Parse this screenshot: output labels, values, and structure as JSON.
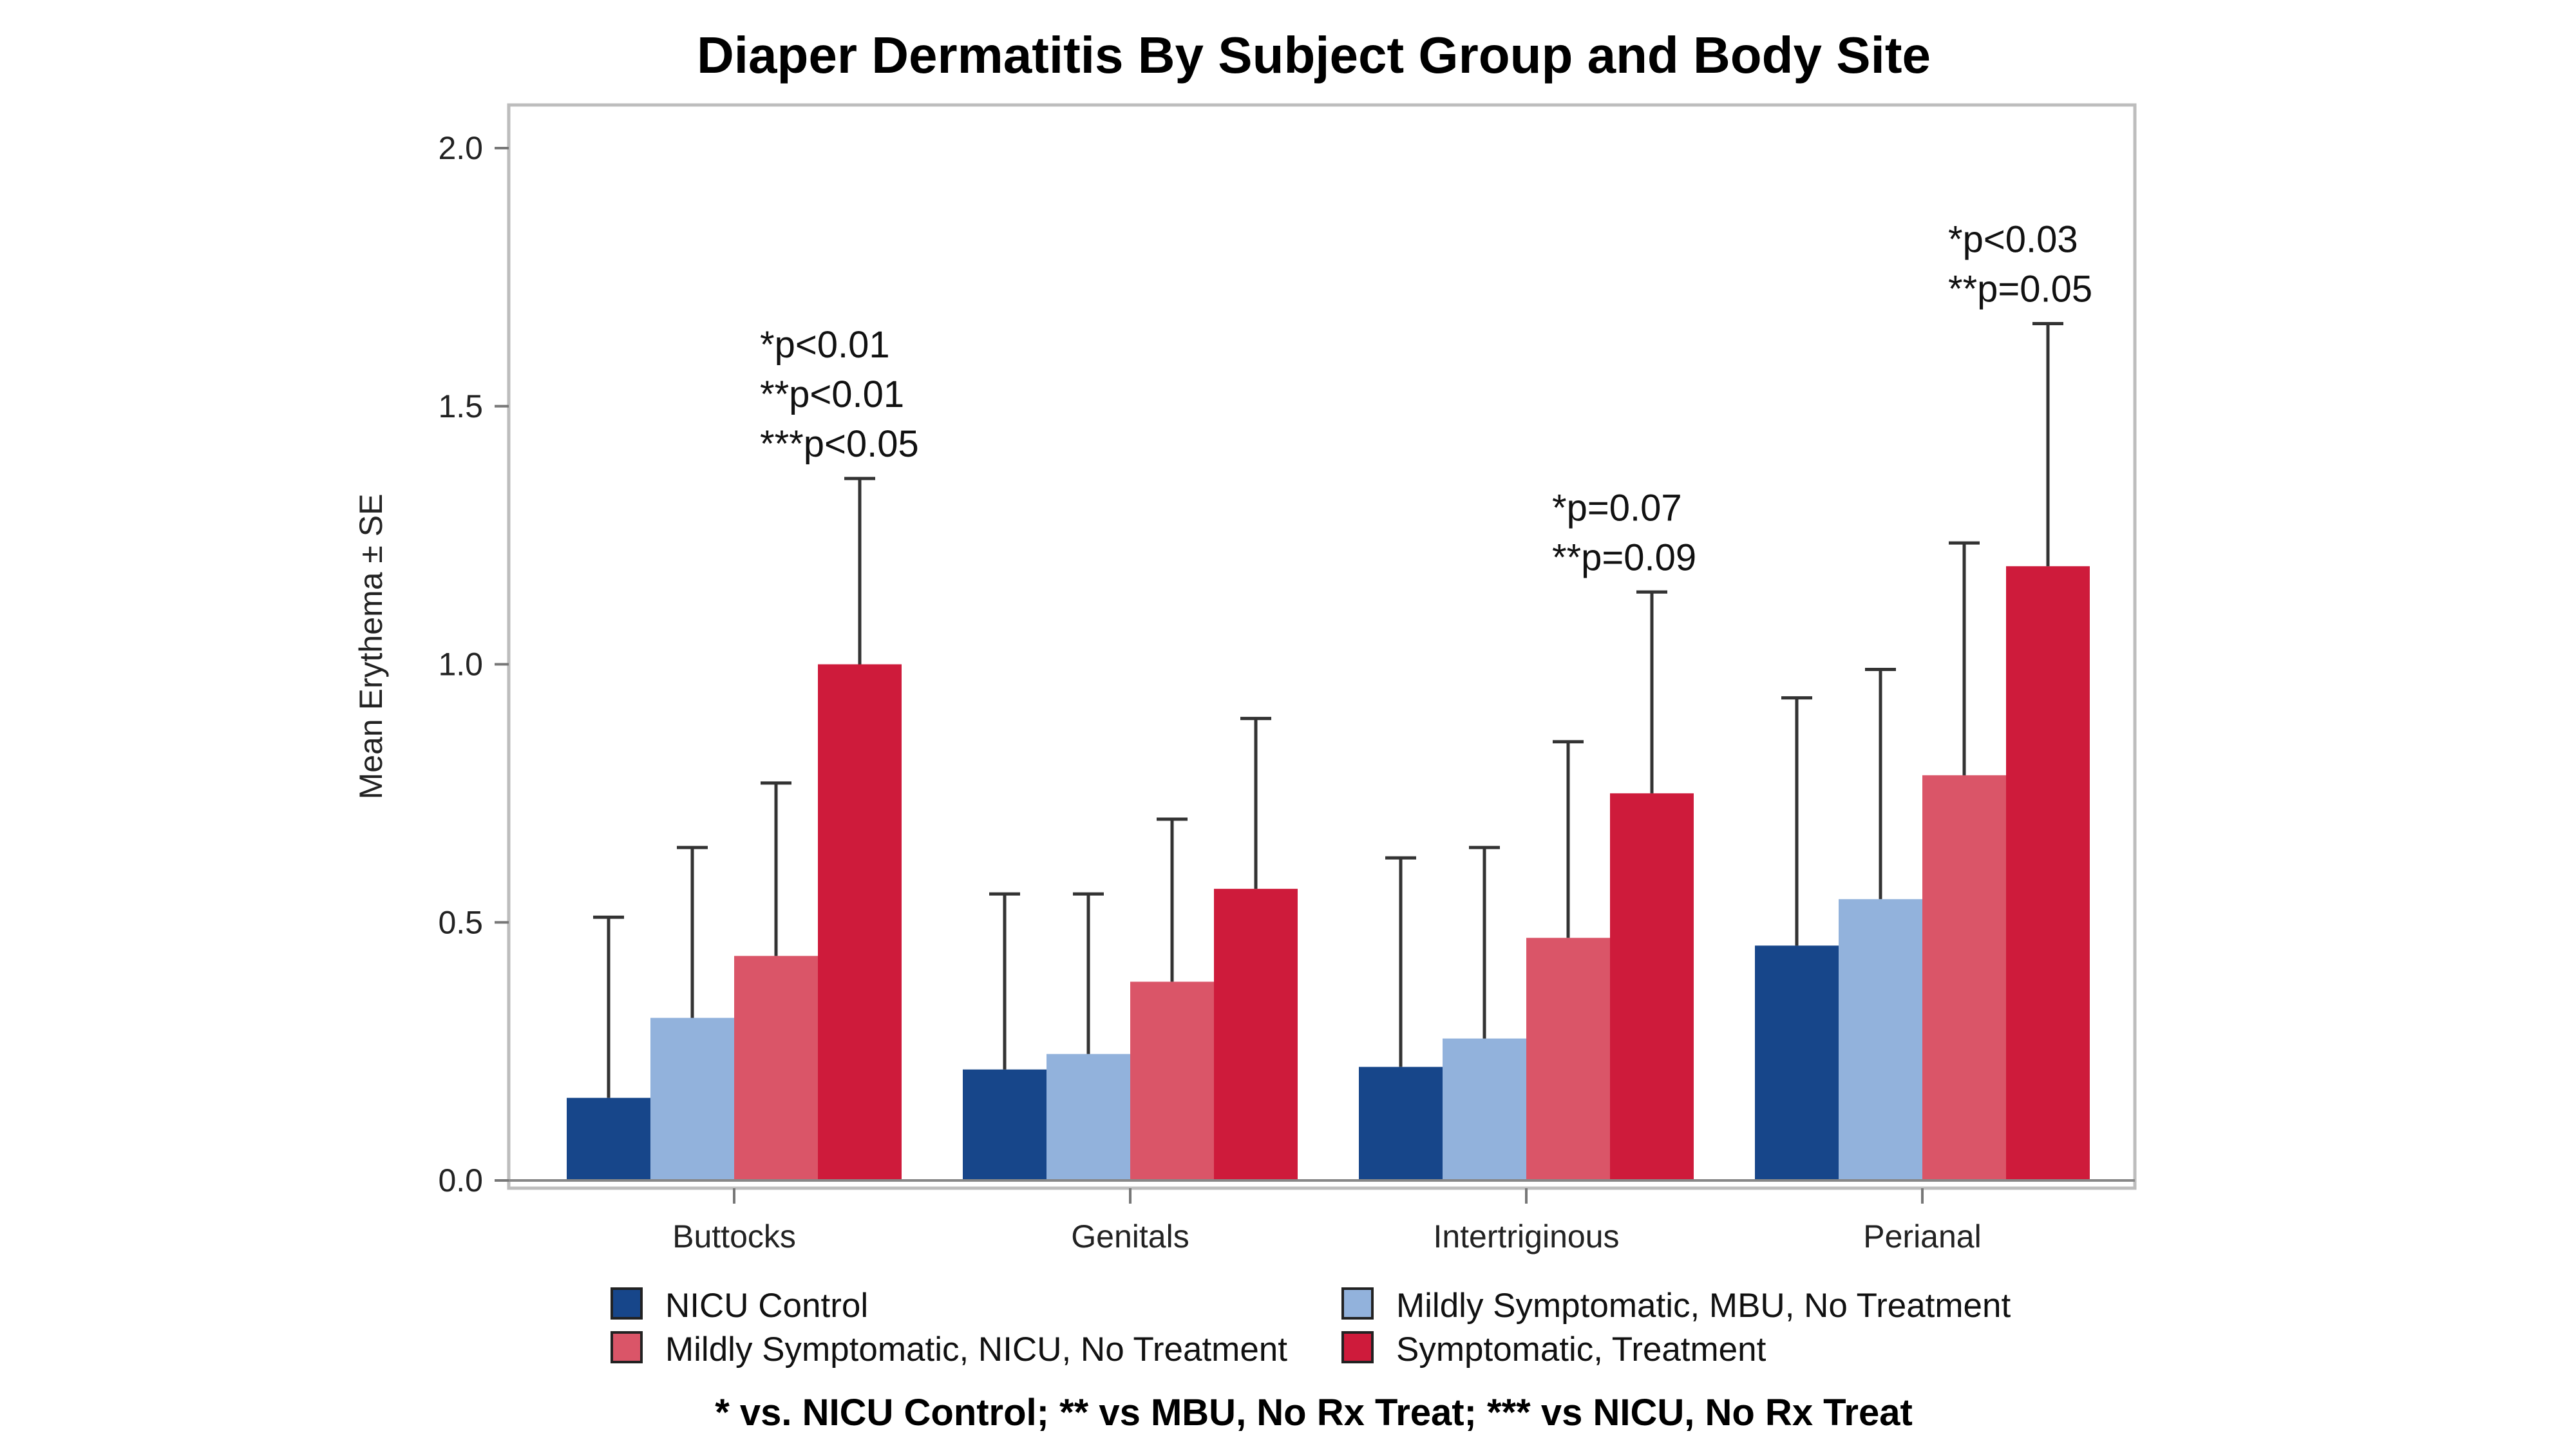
{
  "chart_data": {
    "type": "bar",
    "title": "Diaper Dermatitis By Subject Group and Body Site",
    "xlabel": "",
    "ylabel": "Mean Erythema ± SE",
    "ylim": [
      0,
      2.0
    ],
    "yticks": [
      "0.0",
      "0.5",
      "1.0",
      "1.5",
      "2.0"
    ],
    "categories": [
      "Buttocks",
      "Genitals",
      "Intertriginous",
      "Perianal"
    ],
    "series": [
      {
        "name": "NICU Control",
        "color": "#17468A",
        "values": [
          0.16,
          0.215,
          0.22,
          0.455
        ],
        "error_upper": [
          0.51,
          0.555,
          0.625,
          0.935
        ]
      },
      {
        "name": "Mildly Symptomatic, MBU, No Treatment",
        "color": "#92B2DC",
        "values": [
          0.315,
          0.245,
          0.275,
          0.545
        ],
        "error_upper": [
          0.645,
          0.555,
          0.645,
          0.99
        ]
      },
      {
        "name": "Mildly Symptomatic, NICU, No Treatment",
        "color": "#DA5568",
        "values": [
          0.435,
          0.385,
          0.47,
          0.785
        ],
        "error_upper": [
          0.77,
          0.7,
          0.85,
          1.235
        ]
      },
      {
        "name": "Symptomatic, Treatment",
        "color": "#CE1B3B",
        "values": [
          1.0,
          0.565,
          0.75,
          1.19
        ],
        "error_upper": [
          1.36,
          0.895,
          1.14,
          1.66
        ]
      }
    ],
    "annotations": [
      {
        "category": "Buttocks",
        "lines": [
          "*p<0.01",
          "**p<0.01",
          "***p<0.05"
        ]
      },
      {
        "category": "Intertriginous",
        "lines": [
          "*p=0.07",
          "**p=0.09"
        ]
      },
      {
        "category": "Perianal",
        "lines": [
          "*p<0.03",
          "**p=0.05"
        ]
      }
    ],
    "legend_position": "bottom",
    "grid": false
  },
  "footnote": "* vs. NICU Control; ** vs MBU, No Rx Treat; *** vs NICU, No Rx Treat"
}
